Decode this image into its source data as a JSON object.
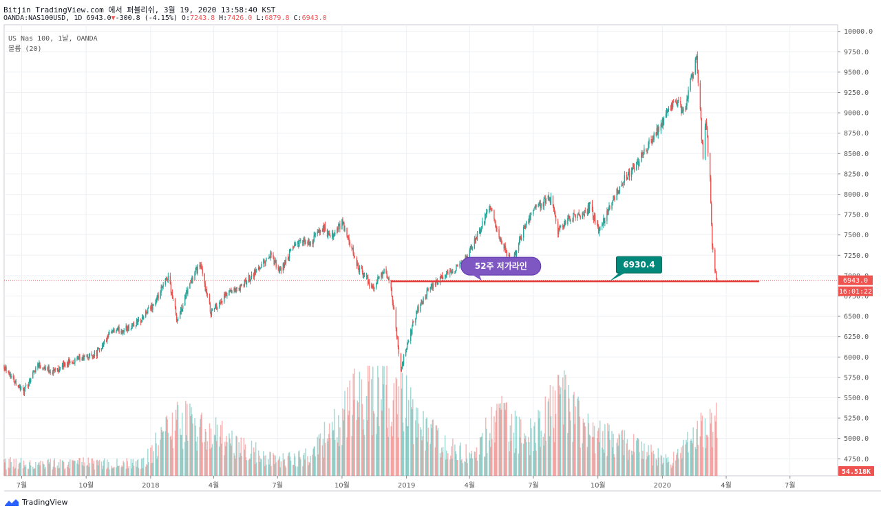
{
  "header": {
    "publisher_line": "Bitjin TradingView.com 에서 퍼블리쉬, 3월 19, 2020 13:58:40 KST",
    "symbol": "OANDA:NAS100USD, 1D",
    "last": "6943.0",
    "change": "-300.8 (-4.15%)",
    "open_label": "O:",
    "open": "7243.8",
    "high_label": "H:",
    "high": "7426.0",
    "low_label": "L:",
    "low": "6879.8",
    "close_label": "C:",
    "close": "6943.0"
  },
  "legend": {
    "instrument": "US Nas 100, 1날, OANDA",
    "volume_label": "볼륨 (20)"
  },
  "annotations": {
    "low_line_label": "52주 저가라인",
    "level_label": "6930.4"
  },
  "price_tags": {
    "last_price": "6943.0",
    "countdown": "16:01:22",
    "volume": "54.518K"
  },
  "colors": {
    "up": "#26a69a",
    "down": "#ef5350",
    "line": "#e53935",
    "bubble": "#7e57c2",
    "level_badge": "#00897b"
  },
  "footer": {
    "brand": "TradingView"
  },
  "chart_data": {
    "type": "candlestick",
    "y_axis": {
      "range": [
        4541,
        10082
      ],
      "ticks": [
        "10000.0",
        "9750.0",
        "9500.0",
        "9250.0",
        "9000.0",
        "8750.0",
        "8500.0",
        "8250.0",
        "8000.0",
        "7750.0",
        "7500.0",
        "7250.0",
        "7000.0",
        "6750.0",
        "6500.0",
        "6250.0",
        "6000.0",
        "5750.0",
        "5500.0",
        "5250.0",
        "5000.0",
        "4750.0"
      ]
    },
    "x_axis": {
      "ticks": [
        "7월",
        "10월",
        "2018",
        "4월",
        "7월",
        "10월",
        "2019",
        "4월",
        "7월",
        "10월",
        "2020",
        "4월",
        "7월"
      ],
      "tick_dates": [
        "2017-07-01",
        "2017-10-01",
        "2018-01-01",
        "2018-04-01",
        "2018-07-01",
        "2018-10-01",
        "2019-01-01",
        "2019-04-01",
        "2019-07-01",
        "2019-10-01",
        "2020-01-01",
        "2020-04-01",
        "2020-07-01"
      ],
      "range": [
        "2017-06-06",
        "2020-09-07"
      ]
    },
    "price_path": [
      [
        "2017-06-06",
        5900
      ],
      [
        "2017-06-20",
        5720
      ],
      [
        "2017-07-04",
        5570
      ],
      [
        "2017-07-24",
        5920
      ],
      [
        "2017-08-14",
        5820
      ],
      [
        "2017-09-04",
        5930
      ],
      [
        "2017-09-26",
        5980
      ],
      [
        "2017-10-16",
        6050
      ],
      [
        "2017-11-06",
        6300
      ],
      [
        "2017-11-28",
        6350
      ],
      [
        "2017-12-18",
        6450
      ],
      [
        "2018-01-10",
        6700
      ],
      [
        "2018-01-26",
        7000
      ],
      [
        "2018-02-08",
        6450
      ],
      [
        "2018-02-26",
        6900
      ],
      [
        "2018-03-12",
        7150
      ],
      [
        "2018-03-28",
        6550
      ],
      [
        "2018-04-18",
        6750
      ],
      [
        "2018-05-09",
        6850
      ],
      [
        "2018-05-30",
        7050
      ],
      [
        "2018-06-20",
        7250
      ],
      [
        "2018-07-05",
        7050
      ],
      [
        "2018-07-26",
        7400
      ],
      [
        "2018-08-17",
        7400
      ],
      [
        "2018-09-04",
        7600
      ],
      [
        "2018-09-14",
        7450
      ],
      [
        "2018-10-01",
        7650
      ],
      [
        "2018-10-24",
        7100
      ],
      [
        "2018-11-14",
        6850
      ],
      [
        "2018-11-30",
        7050
      ],
      [
        "2018-12-10",
        6850
      ],
      [
        "2018-12-24",
        5850
      ],
      [
        "2019-01-15",
        6550
      ],
      [
        "2019-02-04",
        6850
      ],
      [
        "2019-02-26",
        7000
      ],
      [
        "2019-03-22",
        7150
      ],
      [
        "2019-04-05",
        7350
      ],
      [
        "2019-04-30",
        7850
      ],
      [
        "2019-05-13",
        7450
      ],
      [
        "2019-05-31",
        7150
      ],
      [
        "2019-06-20",
        7650
      ],
      [
        "2019-07-05",
        7850
      ],
      [
        "2019-07-26",
        7950
      ],
      [
        "2019-08-05",
        7550
      ],
      [
        "2019-08-20",
        7700
      ],
      [
        "2019-09-10",
        7750
      ],
      [
        "2019-09-20",
        7850
      ],
      [
        "2019-10-02",
        7550
      ],
      [
        "2019-10-18",
        7850
      ],
      [
        "2019-11-08",
        8200
      ],
      [
        "2019-11-28",
        8400
      ],
      [
        "2019-12-18",
        8700
      ],
      [
        "2020-01-06",
        8950
      ],
      [
        "2020-01-20",
        9150
      ],
      [
        "2020-01-31",
        9000
      ],
      [
        "2020-02-19",
        9700
      ],
      [
        "2020-02-28",
        8450
      ],
      [
        "2020-03-03",
        8900
      ],
      [
        "2020-03-09",
        8200
      ],
      [
        "2020-03-12",
        7400
      ],
      [
        "2020-03-16",
        7100
      ],
      [
        "2020-03-19",
        6943
      ]
    ],
    "volume_path": [
      [
        "2017-06-06",
        0.13
      ],
      [
        "2017-12-20",
        0.12
      ],
      [
        "2018-02-05",
        0.55
      ],
      [
        "2018-03-25",
        0.45
      ],
      [
        "2018-05-01",
        0.3
      ],
      [
        "2018-07-01",
        0.15
      ],
      [
        "2018-08-20",
        0.2
      ],
      [
        "2018-10-10",
        0.7
      ],
      [
        "2018-11-20",
        0.8
      ],
      [
        "2018-12-24",
        0.75
      ],
      [
        "2019-01-20",
        0.55
      ],
      [
        "2019-03-01",
        0.3
      ],
      [
        "2019-04-10",
        0.22
      ],
      [
        "2019-05-10",
        0.6
      ],
      [
        "2019-06-20",
        0.35
      ],
      [
        "2019-08-10",
        0.75
      ],
      [
        "2019-09-20",
        0.4
      ],
      [
        "2019-11-20",
        0.3
      ],
      [
        "2019-12-20",
        0.2
      ],
      [
        "2020-01-15",
        0.15
      ],
      [
        "2020-02-25",
        0.45
      ],
      [
        "2020-03-19",
        0.5
      ]
    ],
    "annotations": [
      {
        "type": "horizontal_segment",
        "price": 6930.4,
        "from": "2018-12-10",
        "to": "2020-05-18",
        "label": "52주 저가라인"
      },
      {
        "type": "price_label",
        "price": 6930.4,
        "label": "6930.4"
      }
    ],
    "last_price_line": 6943.0
  }
}
